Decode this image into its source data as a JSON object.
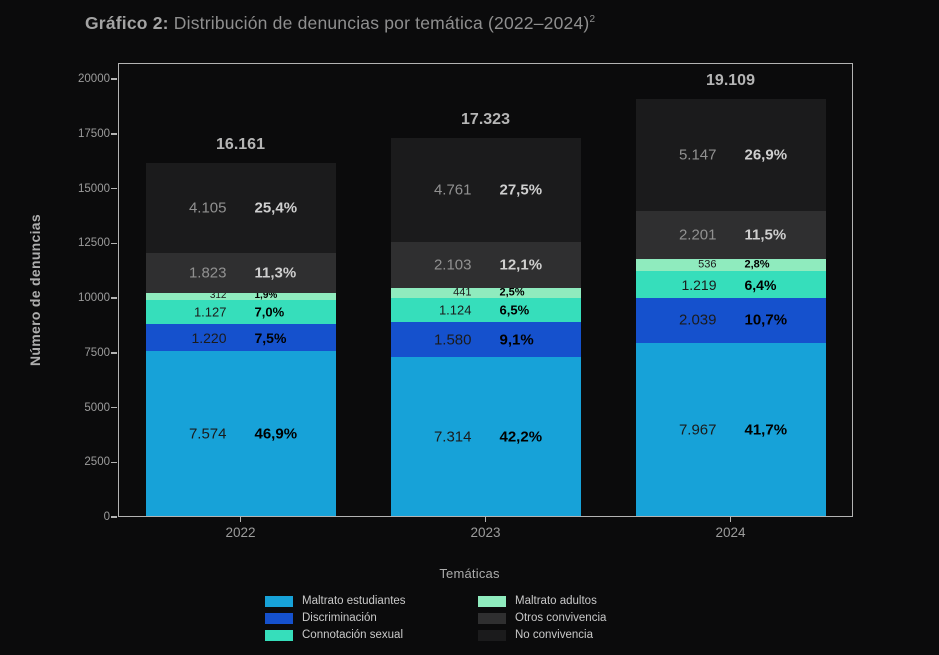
{
  "title": {
    "prefix": "Gráfico 2:",
    "main": " Distribución de denuncias por temática (2022–2024)",
    "superscript": "2"
  },
  "chart_data": {
    "type": "bar",
    "stacked": true,
    "title": "Gráfico 2: Distribución de denuncias por temática (2022–2024)²",
    "xlabel": "Temáticas",
    "ylabel": "Número de denuncias",
    "ylim": [
      0,
      20000
    ],
    "yticks": [
      0,
      2500,
      5000,
      7500,
      10000,
      12500,
      15000,
      17500,
      20000
    ],
    "grid": false,
    "legend_position": "bottom",
    "background_color": "#0b0b0c",
    "categories": [
      "2022",
      "2023",
      "2024"
    ],
    "totals": [
      16161,
      17323,
      19109
    ],
    "totals_display": [
      "16.161",
      "17.323",
      "19.109"
    ],
    "series": [
      {
        "name": "Maltrato estudiantes",
        "color": "#17a2d8",
        "values": [
          7574,
          7314,
          7967
        ],
        "value_labels": [
          "7.574",
          "7.314",
          "7.967"
        ],
        "pct_labels": [
          "46,9%",
          "42,2%",
          "41,7%"
        ]
      },
      {
        "name": "Discriminación",
        "color": "#1551cd",
        "values": [
          1220,
          1580,
          2039
        ],
        "value_labels": [
          "1.220",
          "1.580",
          "2.039"
        ],
        "pct_labels": [
          "7,5%",
          "9,1%",
          "10,7%"
        ]
      },
      {
        "name": "Connotación sexual",
        "color": "#36debb",
        "values": [
          1127,
          1124,
          1219
        ],
        "value_labels": [
          "1.127",
          "1.124",
          "1.219"
        ],
        "pct_labels": [
          "7,0%",
          "6,5%",
          "6,4%"
        ]
      },
      {
        "name": "Maltrato adultos",
        "color": "#8febbe",
        "values": [
          312,
          441,
          536
        ],
        "value_labels": [
          "312",
          "441",
          "536"
        ],
        "pct_labels": [
          "1,9%",
          "2,5%",
          "2,8%"
        ]
      },
      {
        "name": "Otros convivencia",
        "color": "#2f2f30",
        "values": [
          1823,
          2103,
          2201
        ],
        "value_labels": [
          "1.823",
          "2.103",
          "2.201"
        ],
        "pct_labels": [
          "11,3%",
          "12,1%",
          "11,5%"
        ]
      },
      {
        "name": "No convivencia",
        "color": "#1b1b1c",
        "values": [
          4105,
          4761,
          5147
        ],
        "value_labels": [
          "4.105",
          "4.761",
          "5.147"
        ],
        "pct_labels": [
          "25,4%",
          "27,5%",
          "26,9%"
        ]
      }
    ]
  }
}
